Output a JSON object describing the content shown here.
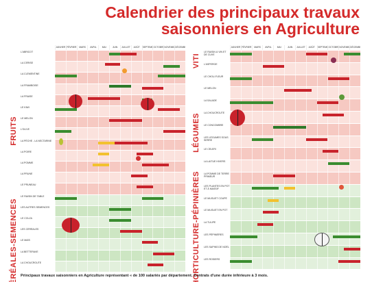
{
  "title": {
    "line1": "Calendrier des principaux travaux",
    "line2": "saisonniers en Agriculture"
  },
  "months": [
    "JANVIER",
    "FÉVRIER",
    "MARS",
    "AVRIL",
    "MAI",
    "JUIN",
    "JUILLET",
    "AOÛT",
    "SEPTEMBRE",
    "OCTOBRE",
    "NOVEMBRE",
    "DÉCEMBRE"
  ],
  "categories": {
    "fruits": "FRUITS",
    "cereales": "CÉRÉALES-SEMENCES",
    "viti": "VITI",
    "legumes": "LÉGUMES",
    "horticulture": "HORTICULTURE-PÉPINIÈRES"
  },
  "left_rows": [
    "L'ABRICOT",
    "LA CERISE",
    "LA CLÉMENTINE",
    "LA FRAMBOISE",
    "LA FRAISE",
    "LE KIWI",
    "LE MELON",
    "L'OLIVE",
    "LA PÊCHE - LA NECTARINE",
    "LA POIRE",
    "LA POMME",
    "LA PRUNE",
    "LE PRUNEAU",
    "LE RAISIN DE TABLE",
    "LES AUTRES SEMENCES",
    "LE COLZA",
    "LES CÉRÉALES",
    "LE MAÏS",
    "LA BETTERAVE",
    "LA CHOUCROUTE"
  ],
  "right_rows": [
    "LE RAISIN À VIN ET DE CUVE",
    "L'ASPERGE",
    "LE CHOU-FLEUR",
    "LE MELON",
    "LA SALADE",
    "LA CHOUCROUTE",
    "LE CONCOMBRE",
    "LES LÉGUMES SOUS SERRE",
    "LE CÉLERI",
    "LA LAITUE HIVERS",
    "LA POMME DE TERRE PRIMEUR",
    "LES PLANTES EN POT ET À MASSIF",
    "LE MUGUET COUPÉ",
    "LE MUGUET EN POT",
    "LA TULIPE",
    "LES PÉPINIÈRES",
    "LES SAPINS DE NOËL",
    "LES ROSIERS"
  ],
  "footer": "Principaux travaux saisonniers en Agriculture représentant « de 100 salariés par département. Contrats d'une durée inférieure à 3 mois."
}
